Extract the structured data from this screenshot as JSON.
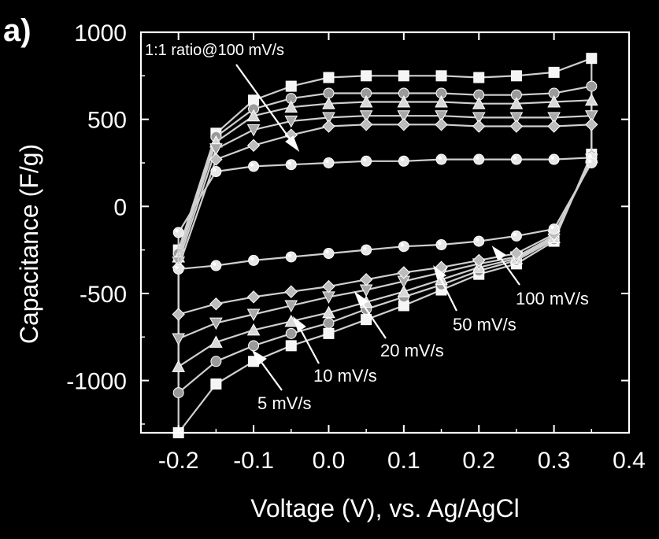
{
  "chart_data": {
    "type": "line",
    "panel_label": "a)",
    "xlabel": "Voltage (V), vs. Ag/AgCl",
    "ylabel": "Capacitance (F/g)",
    "xlim": [
      -0.25,
      0.4
    ],
    "ylim": [
      -1300,
      1000
    ],
    "xticks": [
      -0.2,
      -0.1,
      0.0,
      0.1,
      0.2,
      0.3,
      0.4
    ],
    "yticks": [
      1000,
      500,
      0,
      -500,
      -1000
    ],
    "xtick_labels": [
      "-0.2",
      "-0.1",
      "0.0",
      "0.1",
      "0.2",
      "0.3",
      "0.4"
    ],
    "ytick_labels": [
      "1000",
      "500",
      "0",
      "-500",
      "-1000"
    ],
    "grid": false,
    "colors": {
      "background": "#000000",
      "axis": "#ffffff",
      "series": "#cfcfcf"
    },
    "annotations": [
      {
        "text": "1:1 ratio@100 mV/s"
      },
      {
        "text": "100 mV/s"
      },
      {
        "text": "50 mV/s"
      },
      {
        "text": "20 mV/s"
      },
      {
        "text": "10 mV/s"
      },
      {
        "text": "5 mV/s"
      }
    ],
    "series": [
      {
        "name": "5 mV/s",
        "marker": "square",
        "upper": {
          "x": [
            -0.2,
            -0.15,
            -0.1,
            -0.05,
            0.0,
            0.05,
            0.1,
            0.15,
            0.2,
            0.25,
            0.3,
            0.35
          ],
          "y": [
            -250,
            420,
            610,
            690,
            740,
            750,
            750,
            750,
            740,
            750,
            770,
            850
          ]
        },
        "lower": {
          "x": [
            0.35,
            0.3,
            0.25,
            0.2,
            0.15,
            0.1,
            0.05,
            0.0,
            -0.05,
            -0.1,
            -0.15,
            -0.2
          ],
          "y": [
            300,
            -200,
            -330,
            -390,
            -480,
            -570,
            -650,
            -730,
            -800,
            -890,
            -1020,
            -1300
          ]
        }
      },
      {
        "name": "10 mV/s",
        "marker": "circle",
        "upper": {
          "x": [
            -0.2,
            -0.15,
            -0.1,
            -0.05,
            0.0,
            0.05,
            0.1,
            0.15,
            0.2,
            0.25,
            0.3,
            0.35
          ],
          "y": [
            -270,
            400,
            560,
            620,
            650,
            650,
            650,
            650,
            640,
            640,
            650,
            690
          ]
        },
        "lower": {
          "x": [
            0.35,
            0.3,
            0.25,
            0.2,
            0.15,
            0.1,
            0.05,
            0.0,
            -0.05,
            -0.1,
            -0.15,
            -0.2
          ],
          "y": [
            290,
            -190,
            -310,
            -370,
            -450,
            -520,
            -590,
            -670,
            -730,
            -800,
            -890,
            -1070
          ]
        }
      },
      {
        "name": "20 mV/s",
        "marker": "triangle",
        "upper": {
          "x": [
            -0.2,
            -0.15,
            -0.1,
            -0.05,
            0.0,
            0.05,
            0.1,
            0.15,
            0.2,
            0.25,
            0.3,
            0.35
          ],
          "y": [
            -290,
            370,
            520,
            570,
            590,
            600,
            600,
            600,
            590,
            590,
            600,
            610
          ]
        },
        "lower": {
          "x": [
            0.35,
            0.3,
            0.25,
            0.2,
            0.15,
            0.1,
            0.05,
            0.0,
            -0.05,
            -0.1,
            -0.15,
            -0.2
          ],
          "y": [
            280,
            -180,
            -300,
            -350,
            -420,
            -490,
            -550,
            -610,
            -660,
            -710,
            -780,
            -920
          ]
        }
      },
      {
        "name": "50 mV/s",
        "marker": "triangle-down",
        "upper": {
          "x": [
            -0.2,
            -0.15,
            -0.1,
            -0.05,
            0.0,
            0.05,
            0.1,
            0.15,
            0.2,
            0.25,
            0.3,
            0.35
          ],
          "y": [
            -320,
            330,
            440,
            490,
            510,
            520,
            520,
            520,
            510,
            510,
            510,
            520
          ]
        },
        "lower": {
          "x": [
            0.35,
            0.3,
            0.25,
            0.2,
            0.15,
            0.1,
            0.05,
            0.0,
            -0.05,
            -0.1,
            -0.15,
            -0.2
          ],
          "y": [
            270,
            -170,
            -290,
            -330,
            -380,
            -430,
            -480,
            -520,
            -570,
            -620,
            -670,
            -760
          ]
        }
      },
      {
        "name": "100 mV/s",
        "marker": "diamond",
        "upper": {
          "x": [
            -0.2,
            -0.15,
            -0.1,
            -0.05,
            0.0,
            0.05,
            0.1,
            0.15,
            0.2,
            0.25,
            0.3,
            0.35
          ],
          "y": [
            -350,
            270,
            350,
            410,
            460,
            470,
            470,
            470,
            460,
            460,
            460,
            470
          ]
        },
        "lower": {
          "x": [
            0.35,
            0.3,
            0.25,
            0.2,
            0.15,
            0.1,
            0.05,
            0.0,
            -0.05,
            -0.1,
            -0.15,
            -0.2
          ],
          "y": [
            260,
            -160,
            -270,
            -310,
            -350,
            -380,
            -420,
            -460,
            -490,
            -520,
            -560,
            -620
          ]
        }
      },
      {
        "name": "1:1 ratio@100 mV/s",
        "marker": "sphere",
        "upper": {
          "x": [
            -0.2,
            -0.15,
            -0.1,
            -0.05,
            0.0,
            0.05,
            0.1,
            0.15,
            0.2,
            0.25,
            0.3,
            0.35
          ],
          "y": [
            -150,
            200,
            230,
            240,
            250,
            260,
            260,
            270,
            270,
            270,
            270,
            280
          ]
        },
        "lower": {
          "x": [
            0.35,
            0.3,
            0.25,
            0.2,
            0.15,
            0.1,
            0.05,
            0.0,
            -0.05,
            -0.1,
            -0.15,
            -0.2
          ],
          "y": [
            250,
            -130,
            -170,
            -200,
            -220,
            -230,
            -250,
            -270,
            -290,
            -310,
            -340,
            -360
          ]
        }
      }
    ]
  }
}
